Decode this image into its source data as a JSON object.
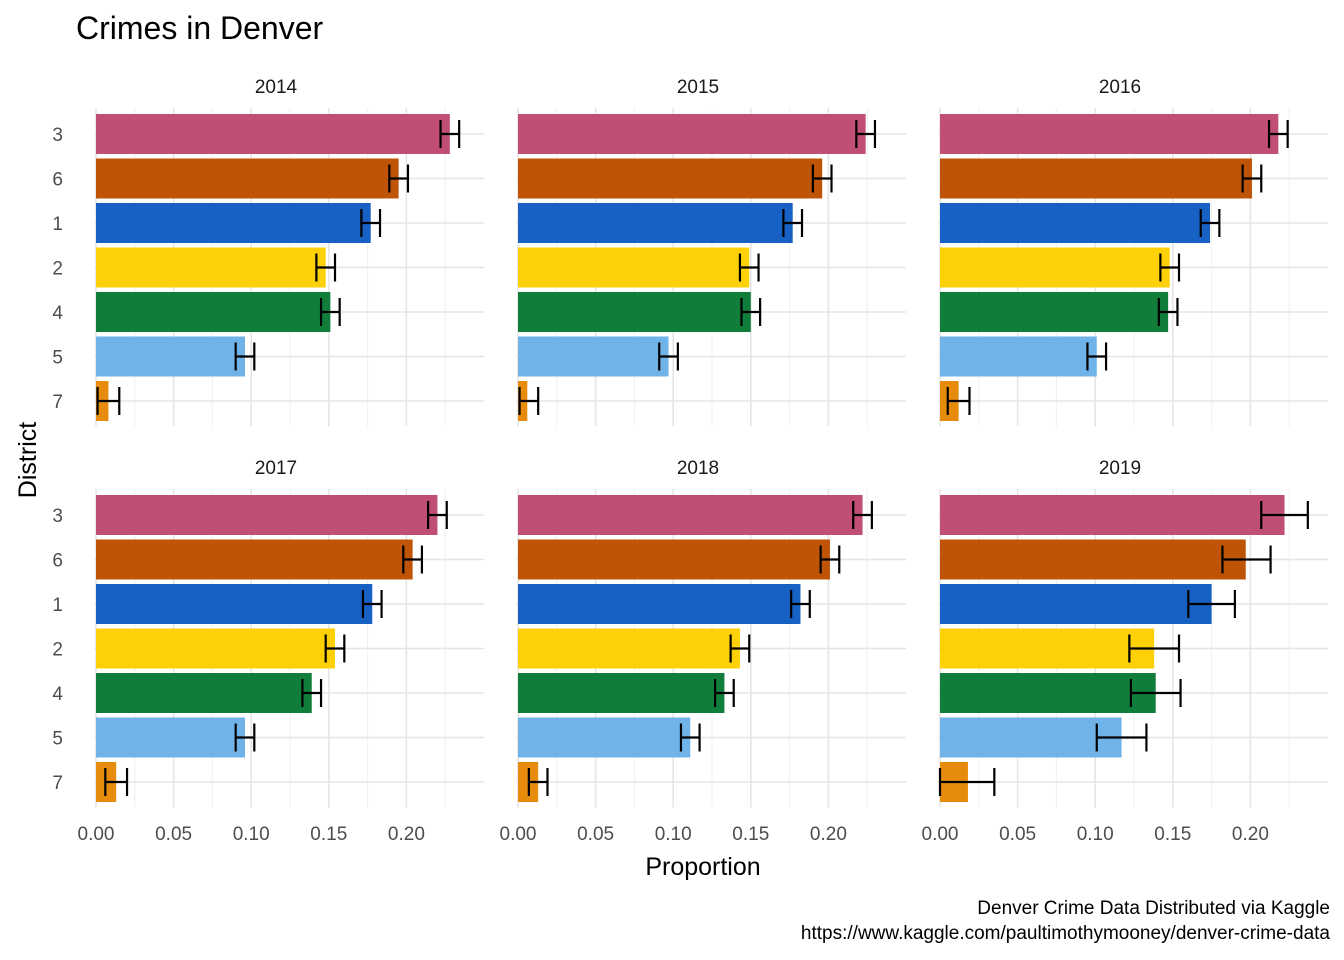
{
  "chart_data": {
    "type": "bar",
    "orientation": "horizontal",
    "title": "Crimes in Denver",
    "xlabel": "Proportion",
    "ylabel": "District",
    "xlim": [
      0,
      0.24
    ],
    "x_ticks": [
      "0.00",
      "0.05",
      "0.10",
      "0.15",
      "0.20"
    ],
    "x_tick_values": [
      0,
      0.05,
      0.1,
      0.15,
      0.2
    ],
    "categories": [
      "3",
      "6",
      "1",
      "2",
      "4",
      "5",
      "7"
    ],
    "colors": [
      "#c14f73",
      "#c05406",
      "#1760c4",
      "#fed107",
      "#117d3b",
      "#70b3e9",
      "#e78b0d"
    ],
    "grid": true,
    "legend": "none",
    "caption": [
      "Denver Crime Data Distributed via Kaggle",
      "https://www.kaggle.com/paultimothymooney/denver-crime-data"
    ],
    "facets": [
      {
        "label": "2014",
        "values": [
          0.228,
          0.195,
          0.177,
          0.148,
          0.151,
          0.096,
          0.008
        ],
        "error_low": [
          0.222,
          0.189,
          0.171,
          0.142,
          0.145,
          0.09,
          0.001
        ],
        "error_high": [
          0.234,
          0.201,
          0.183,
          0.154,
          0.157,
          0.102,
          0.015
        ]
      },
      {
        "label": "2015",
        "values": [
          0.224,
          0.196,
          0.177,
          0.149,
          0.15,
          0.097,
          0.006
        ],
        "error_low": [
          0.218,
          0.19,
          0.171,
          0.143,
          0.144,
          0.091,
          0.001
        ],
        "error_high": [
          0.23,
          0.202,
          0.183,
          0.155,
          0.156,
          0.103,
          0.013
        ]
      },
      {
        "label": "2016",
        "values": [
          0.218,
          0.201,
          0.174,
          0.148,
          0.147,
          0.101,
          0.012
        ],
        "error_low": [
          0.212,
          0.195,
          0.168,
          0.142,
          0.141,
          0.095,
          0.005
        ],
        "error_high": [
          0.224,
          0.207,
          0.18,
          0.154,
          0.153,
          0.107,
          0.019
        ]
      },
      {
        "label": "2017",
        "values": [
          0.22,
          0.204,
          0.178,
          0.154,
          0.139,
          0.096,
          0.013
        ],
        "error_low": [
          0.214,
          0.198,
          0.172,
          0.148,
          0.133,
          0.09,
          0.006
        ],
        "error_high": [
          0.226,
          0.21,
          0.184,
          0.16,
          0.145,
          0.102,
          0.02
        ]
      },
      {
        "label": "2018",
        "values": [
          0.222,
          0.201,
          0.182,
          0.143,
          0.133,
          0.111,
          0.013
        ],
        "error_low": [
          0.216,
          0.195,
          0.176,
          0.137,
          0.127,
          0.105,
          0.007
        ],
        "error_high": [
          0.228,
          0.207,
          0.188,
          0.149,
          0.139,
          0.117,
          0.019
        ]
      },
      {
        "label": "2019",
        "values": [
          0.222,
          0.197,
          0.175,
          0.138,
          0.139,
          0.117,
          0.018
        ],
        "error_low": [
          0.207,
          0.182,
          0.16,
          0.122,
          0.123,
          0.101,
          0.0
        ],
        "error_high": [
          0.237,
          0.213,
          0.19,
          0.154,
          0.155,
          0.133,
          0.035
        ]
      }
    ]
  }
}
